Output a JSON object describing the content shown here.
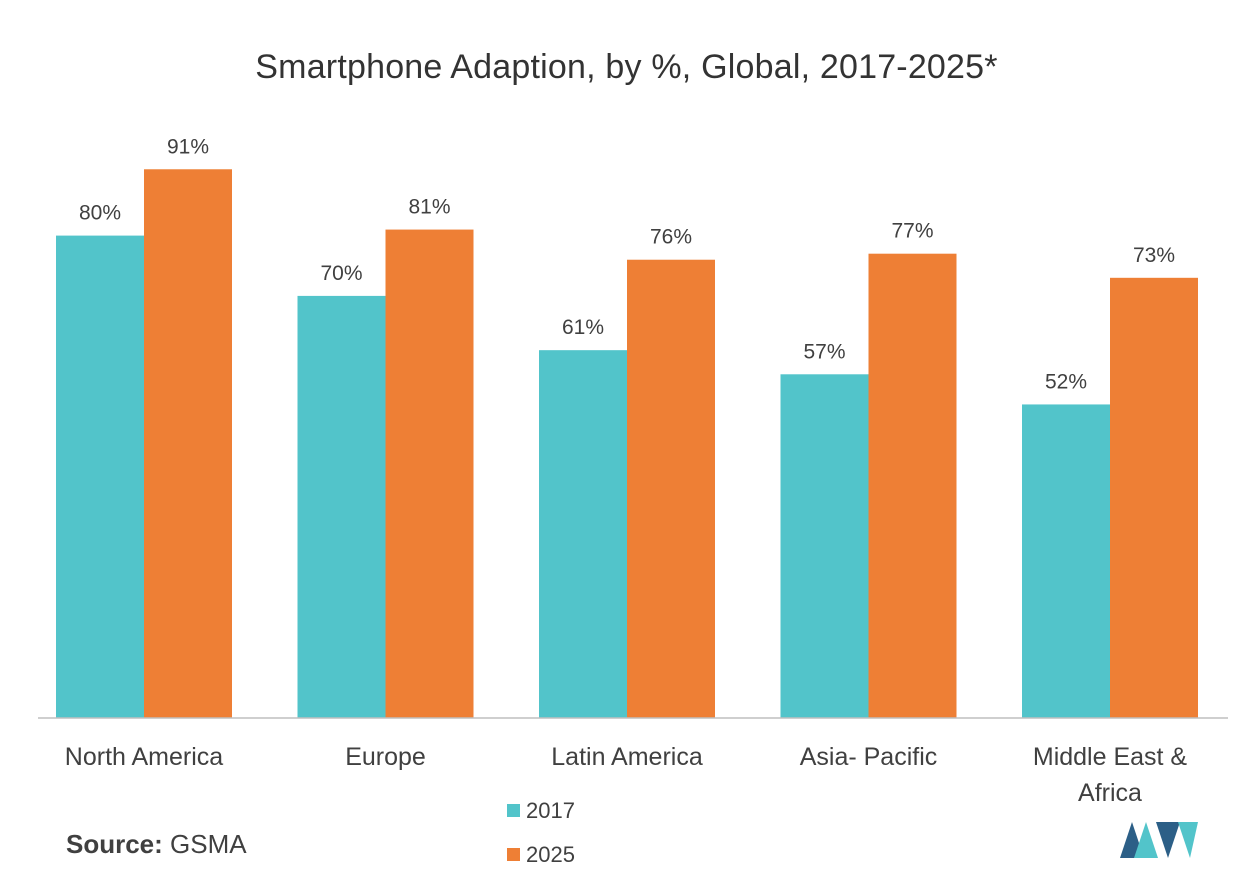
{
  "chart_data": {
    "type": "bar",
    "title": "Smartphone Adaption, by %, Global, 2017-2025*",
    "categories": [
      [
        "North America"
      ],
      [
        "Europe"
      ],
      [
        "Latin America"
      ],
      [
        "Asia- Pacific"
      ],
      [
        "Middle East &",
        "Africa"
      ]
    ],
    "series": [
      {
        "name": "2017",
        "color": "#52C4CA",
        "values": [
          80,
          70,
          61,
          57,
          52
        ],
        "labels": [
          "80%",
          "70%",
          "61%",
          "57%",
          "52%"
        ]
      },
      {
        "name": "2025",
        "color": "#EE7F35",
        "values": [
          91,
          81,
          76,
          77,
          73
        ],
        "labels": [
          "91%",
          "81%",
          "76%",
          "77%",
          "73%"
        ]
      }
    ],
    "ylim": [
      0,
      100
    ],
    "xlabel": "",
    "ylabel": "",
    "grid": false,
    "legend": "bottom-center"
  },
  "source": {
    "key": "Source:",
    "value": "GSMA"
  },
  "logo": {
    "colors": [
      "#2C5F87",
      "#52C4CA"
    ]
  }
}
